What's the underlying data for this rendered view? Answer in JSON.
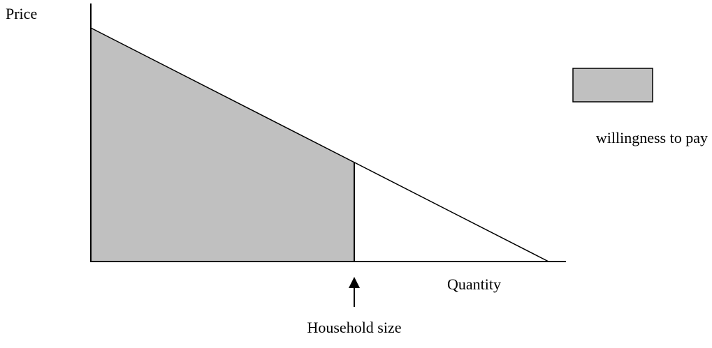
{
  "axes": {
    "y_label": "Price",
    "x_label": "Quantity"
  },
  "marker": {
    "label": "Household size"
  },
  "legend": {
    "label": "willingness to pay"
  }
}
